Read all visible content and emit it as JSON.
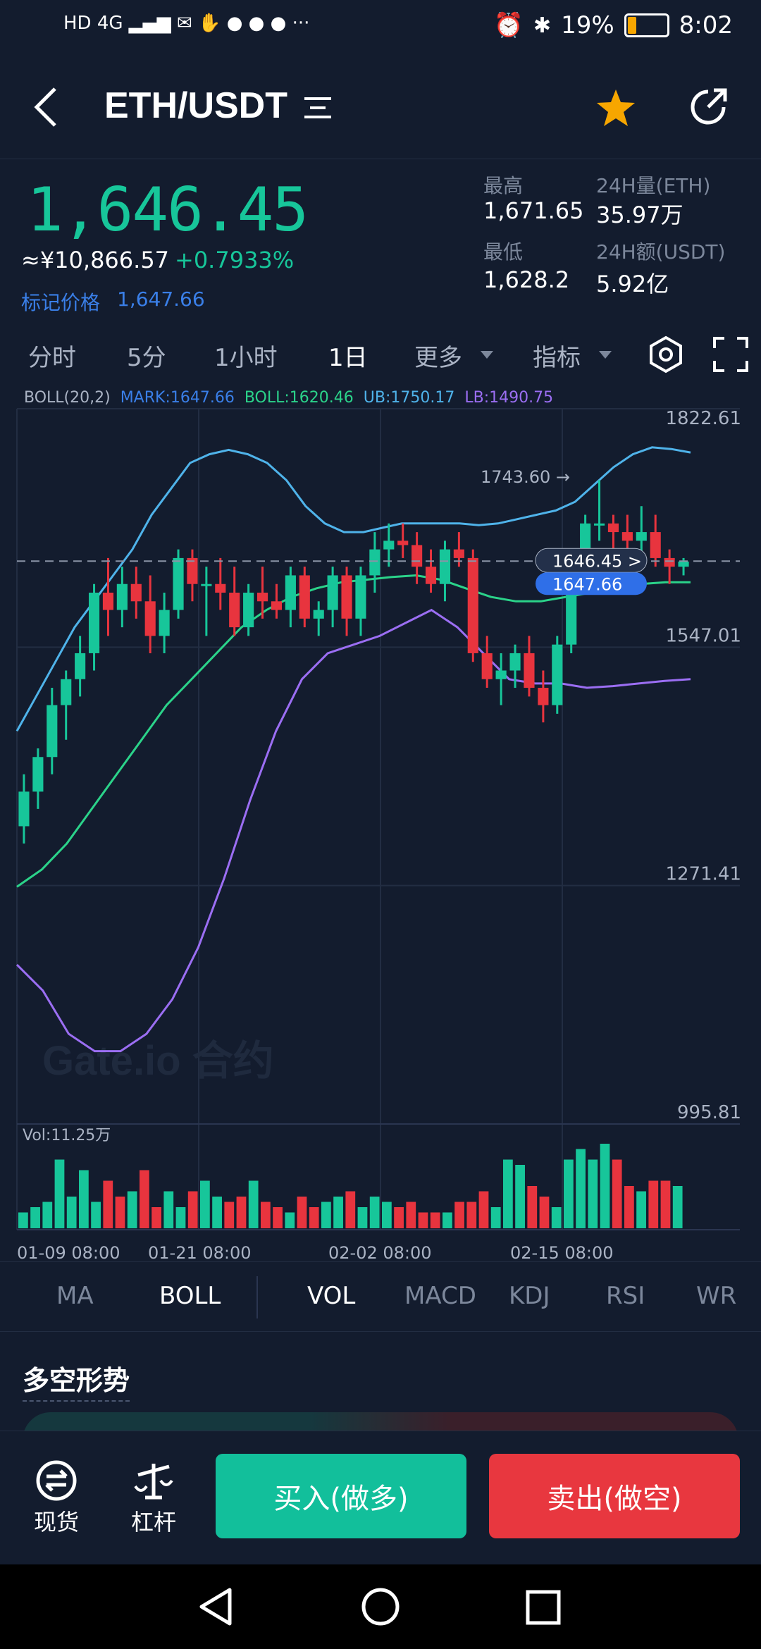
{
  "status_bar": {
    "left_icons": "HD 4G ▂▄▆ ✉ ✋ ● ● ● ···",
    "battery": "19%",
    "time": "8:02"
  },
  "header": {
    "title": "ETH/USDT",
    "back_icon": "chevron-left-icon",
    "menu_icon": "list-icon",
    "favorite_icon": "star-icon",
    "share_icon": "share-icon",
    "favorite_color": "#f7a600"
  },
  "ticker": {
    "price": "1,646.45",
    "cny_price": "≈¥10,866.57",
    "change": "+0.7933%",
    "mark_label": "标记价格",
    "mark_value": "1,647.66",
    "high_label": "最高",
    "high_value": "1,671.65",
    "low_label": "最低",
    "low_value": "1,628.2",
    "vol_label": "24H量(ETH)",
    "vol_value": "35.97万",
    "amt_label": "24H额(USDT)",
    "amt_value": "5.92亿"
  },
  "timeframes": {
    "items": [
      "分时",
      "5分",
      "1小时",
      "1日",
      "更多",
      "指标"
    ],
    "active": "1日"
  },
  "legend": {
    "boll": "BOLL(20,2)",
    "mark": "MARK:1647.66",
    "mid": "BOLL:1620.46",
    "ub": "UB:1750.17",
    "lb": "LB:1490.75"
  },
  "chart_data": {
    "type": "candlestick",
    "price_axis": {
      "ticks": [
        "1822.61",
        "1547.01",
        "1271.41",
        "995.81"
      ],
      "range": [
        995.81,
        1822.61
      ]
    },
    "time_axis": [
      "01-09 08:00",
      "01-21 08:00",
      "02-02 08:00",
      "02-15 08:00"
    ],
    "high_marker": "1743.60 →",
    "current_price_label": "1646.45  >",
    "mark_price_label": "1647.66",
    "volume_label": "Vol:11.25万",
    "watermark": "Gate.io 合约",
    "colors": {
      "up": "#17c69a",
      "down": "#e8343e",
      "ub": "#4fb3ea",
      "mid": "#2bd38a",
      "lb": "#9b6ef3"
    },
    "candles": [
      [
        1340,
        1400,
        1320,
        1380
      ],
      [
        1380,
        1430,
        1360,
        1420
      ],
      [
        1420,
        1500,
        1400,
        1480
      ],
      [
        1480,
        1520,
        1440,
        1510
      ],
      [
        1510,
        1560,
        1490,
        1540
      ],
      [
        1540,
        1620,
        1520,
        1610
      ],
      [
        1610,
        1650,
        1560,
        1590
      ],
      [
        1590,
        1640,
        1570,
        1620
      ],
      [
        1620,
        1640,
        1580,
        1600
      ],
      [
        1600,
        1630,
        1540,
        1560
      ],
      [
        1560,
        1610,
        1540,
        1590
      ],
      [
        1590,
        1660,
        1580,
        1650
      ],
      [
        1650,
        1660,
        1600,
        1620
      ],
      [
        1620,
        1640,
        1560,
        1620
      ],
      [
        1620,
        1650,
        1590,
        1610
      ],
      [
        1610,
        1640,
        1560,
        1570
      ],
      [
        1570,
        1620,
        1560,
        1610
      ],
      [
        1610,
        1640,
        1580,
        1600
      ],
      [
        1600,
        1620,
        1580,
        1590
      ],
      [
        1590,
        1640,
        1570,
        1630
      ],
      [
        1630,
        1640,
        1570,
        1580
      ],
      [
        1580,
        1600,
        1560,
        1590
      ],
      [
        1590,
        1640,
        1570,
        1630
      ],
      [
        1630,
        1640,
        1560,
        1580
      ],
      [
        1580,
        1640,
        1560,
        1630
      ],
      [
        1630,
        1680,
        1610,
        1660
      ],
      [
        1660,
        1690,
        1640,
        1670
      ],
      [
        1670,
        1690,
        1650,
        1665
      ],
      [
        1665,
        1680,
        1620,
        1640
      ],
      [
        1640,
        1660,
        1610,
        1620
      ],
      [
        1620,
        1670,
        1600,
        1660
      ],
      [
        1660,
        1680,
        1640,
        1650
      ],
      [
        1650,
        1660,
        1530,
        1540
      ],
      [
        1540,
        1560,
        1500,
        1510
      ],
      [
        1510,
        1540,
        1480,
        1520
      ],
      [
        1520,
        1550,
        1500,
        1540
      ],
      [
        1540,
        1560,
        1490,
        1500
      ],
      [
        1500,
        1520,
        1460,
        1480
      ],
      [
        1480,
        1560,
        1470,
        1550
      ],
      [
        1550,
        1650,
        1540,
        1640
      ],
      [
        1640,
        1700,
        1630,
        1690
      ],
      [
        1690,
        1740,
        1670,
        1690
      ],
      [
        1690,
        1700,
        1660,
        1680
      ],
      [
        1680,
        1700,
        1660,
        1670
      ],
      [
        1670,
        1710,
        1650,
        1680
      ],
      [
        1680,
        1700,
        1640,
        1650
      ],
      [
        1650,
        1660,
        1620,
        1640
      ],
      [
        1640,
        1650,
        1630,
        1646
      ]
    ],
    "ub": [
      1450,
      1490,
      1530,
      1570,
      1600,
      1630,
      1660,
      1700,
      1730,
      1760,
      1770,
      1775,
      1770,
      1760,
      1740,
      1710,
      1690,
      1680,
      1680,
      1685,
      1690,
      1690,
      1690,
      1690,
      1688,
      1690,
      1695,
      1700,
      1705,
      1715,
      1735,
      1755,
      1770,
      1778,
      1776,
      1772
    ],
    "mid": [
      1270,
      1290,
      1320,
      1360,
      1400,
      1440,
      1480,
      1510,
      1540,
      1570,
      1590,
      1605,
      1615,
      1622,
      1625,
      1628,
      1630,
      1625,
      1615,
      1605,
      1600,
      1600,
      1605,
      1610,
      1615,
      1620,
      1622,
      1622
    ],
    "lb": [
      1180,
      1150,
      1100,
      1080,
      1080,
      1100,
      1140,
      1200,
      1280,
      1370,
      1450,
      1510,
      1540,
      1550,
      1560,
      1575,
      1590,
      1570,
      1540,
      1510,
      1505,
      1505,
      1500,
      1502,
      1505,
      1508,
      1510
    ],
    "volumes": [
      1.5,
      2.0,
      2.5,
      6.5,
      3.0,
      5.5,
      2.5,
      4.5,
      3.0,
      3.5,
      5.5,
      2.0,
      3.5,
      2.0,
      3.5,
      4.5,
      3.0,
      2.5,
      3.0,
      4.5,
      2.5,
      2.0,
      1.5,
      3.0,
      2.0,
      2.5,
      3.0,
      3.5,
      2.0,
      3.0,
      2.5,
      2.0,
      2.5,
      1.5,
      1.5,
      1.5,
      2.5,
      2.5,
      3.5,
      2.0,
      6.5,
      6.0,
      4.0,
      3.0,
      2.0,
      6.5,
      7.5,
      6.5,
      8.0,
      6.5,
      4.0,
      3.5,
      4.5,
      4.5,
      4.0
    ]
  },
  "indicator_tabs": {
    "items": [
      "MA",
      "BOLL",
      "VOL",
      "MACD",
      "KDJ",
      "RSI",
      "WR"
    ],
    "active": [
      "BOLL",
      "VOL"
    ]
  },
  "section": {
    "title": "多空形势"
  },
  "bottom": {
    "spot_label": "现货",
    "leverage_label": "杠杆",
    "buy_label": "买入(做多)",
    "sell_label": "卖出(做空)",
    "buy_color": "#12bf9b",
    "sell_color": "#e8373f"
  }
}
